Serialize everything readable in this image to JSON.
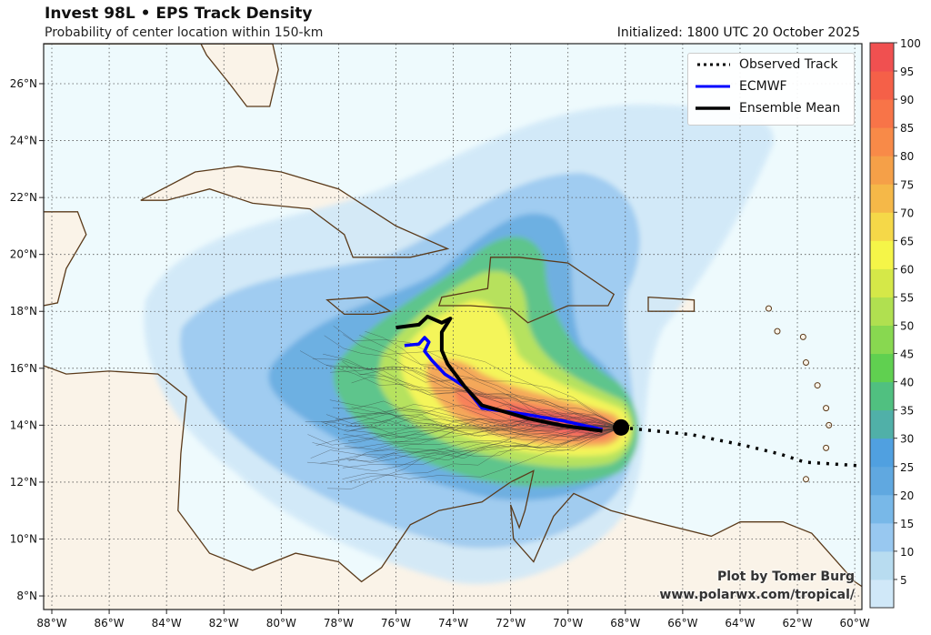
{
  "header": {
    "title": "Invest 98L • EPS Track Density",
    "subtitle": "Probability of center location within 150-km",
    "initialized": "Initialized: 1800 UTC 20 October 2025"
  },
  "map": {
    "lon_labels": [
      "88°W",
      "86°W",
      "84°W",
      "82°W",
      "80°W",
      "78°W",
      "76°W",
      "74°W",
      "72°W",
      "70°W",
      "68°W",
      "66°W",
      "64°W",
      "62°W",
      "60°W"
    ],
    "lat_labels": [
      "26°N",
      "24°N",
      "22°N",
      "20°N",
      "18°N",
      "16°N",
      "14°N",
      "12°N",
      "10°N",
      "8°N"
    ],
    "lon_range": [
      -88.3,
      -59.7
    ],
    "lat_range": [
      7.5,
      27.4
    ],
    "colors": {
      "ocean": "#eefafd",
      "land": "#faf3e8",
      "coast": "#5a3a1a"
    }
  },
  "tracks": {
    "observed": {
      "name": "Observed Track",
      "color": "#000000",
      "points": [
        [
          -68.15,
          13.92
        ],
        [
          -65.7,
          13.67
        ],
        [
          -63.8,
          13.28
        ],
        [
          -62.55,
          12.97
        ],
        [
          -61.75,
          12.7
        ],
        [
          -59.75,
          12.57
        ]
      ]
    },
    "ecmwf": {
      "name": "ECMWF",
      "color": "#0000ff",
      "points": [
        [
          -68.8,
          13.85
        ],
        [
          -70.15,
          14.15
        ],
        [
          -71.4,
          14.37
        ],
        [
          -73.0,
          14.6
        ],
        [
          -73.6,
          15.35
        ],
        [
          -74.3,
          15.8
        ],
        [
          -74.75,
          16.28
        ],
        [
          -75.0,
          16.6
        ],
        [
          -74.85,
          16.92
        ],
        [
          -75.0,
          17.08
        ],
        [
          -75.2,
          16.85
        ],
        [
          -75.7,
          16.8
        ]
      ]
    },
    "ensemble_mean": {
      "name": "Ensemble Mean",
      "color": "#000000",
      "points": [
        [
          -68.8,
          13.8
        ],
        [
          -70.15,
          13.98
        ],
        [
          -71.4,
          14.24
        ],
        [
          -73.0,
          14.7
        ],
        [
          -73.6,
          15.35
        ],
        [
          -74.2,
          16.15
        ],
        [
          -74.4,
          16.63
        ],
        [
          -74.4,
          17.27
        ],
        [
          -74.1,
          17.75
        ],
        [
          -74.4,
          17.6
        ],
        [
          -74.9,
          17.82
        ],
        [
          -75.2,
          17.53
        ],
        [
          -76.0,
          17.43
        ]
      ]
    },
    "current_position": [
      -68.15,
      13.92
    ]
  },
  "colorbar": {
    "ticks": [
      "5",
      "10",
      "15",
      "20",
      "25",
      "30",
      "35",
      "40",
      "45",
      "50",
      "55",
      "60",
      "65",
      "70",
      "75",
      "80",
      "85",
      "90",
      "95",
      "100"
    ],
    "colors": [
      "#d0e8f8",
      "#b8dcf0",
      "#98c8f0",
      "#78b8e8",
      "#60a8e0",
      "#50a0e0",
      "#50b0a8",
      "#50c080",
      "#60d050",
      "#88d850",
      "#b0e050",
      "#d5e848",
      "#f5f548",
      "#f5d848",
      "#f5b848",
      "#f5a048",
      "#f88a48",
      "#f87448",
      "#f56048",
      "#f05050"
    ]
  },
  "credits": {
    "line1": "Plot by Tomer Burg",
    "line2": "www.polarwx.com/tropical/"
  }
}
